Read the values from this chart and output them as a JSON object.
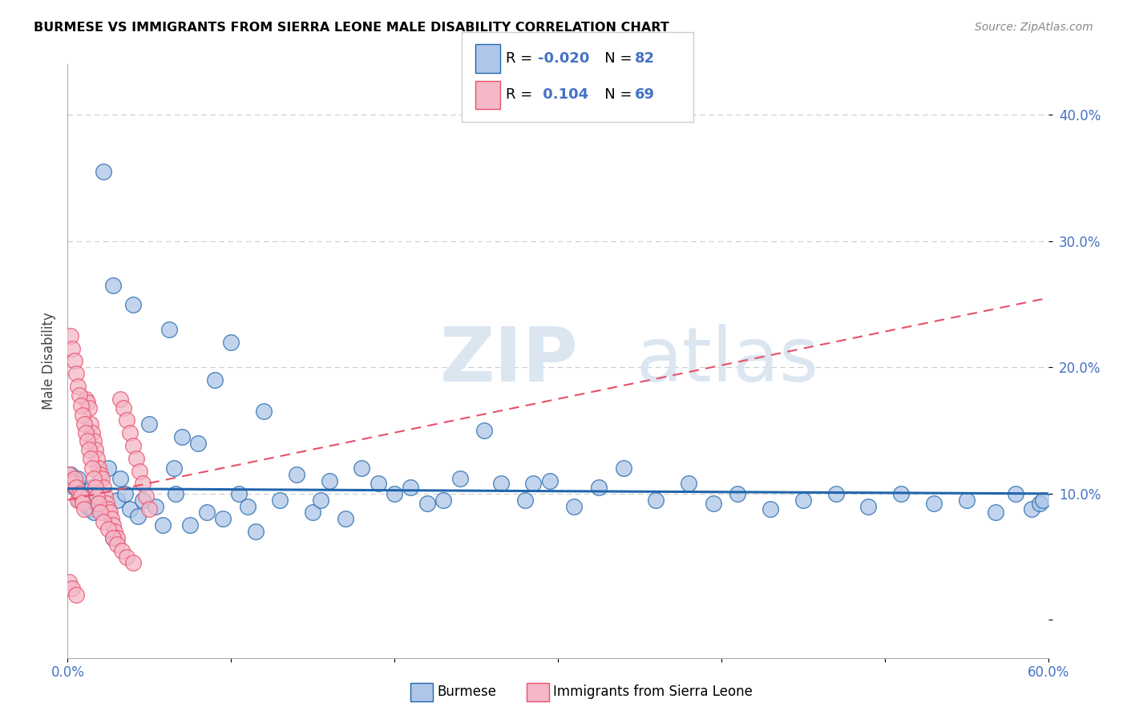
{
  "title": "BURMESE VS IMMIGRANTS FROM SIERRA LEONE MALE DISABILITY CORRELATION CHART",
  "source": "Source: ZipAtlas.com",
  "ylabel": "Male Disability",
  "xlim": [
    0,
    0.6
  ],
  "ylim": [
    -0.03,
    0.44
  ],
  "color_blue": "#aec6e8",
  "color_pink": "#f4b8c8",
  "color_blue_line": "#2166ac",
  "color_pink_line": "#e8506a",
  "burmese_x": [
    0.002,
    0.003,
    0.004,
    0.005,
    0.006,
    0.007,
    0.008,
    0.009,
    0.01,
    0.011,
    0.012,
    0.013,
    0.014,
    0.015,
    0.016,
    0.018,
    0.02,
    0.022,
    0.025,
    0.028,
    0.03,
    0.032,
    0.035,
    0.038,
    0.04,
    0.043,
    0.046,
    0.05,
    0.054,
    0.058,
    0.062,
    0.066,
    0.07,
    0.075,
    0.08,
    0.085,
    0.09,
    0.095,
    0.1,
    0.105,
    0.11,
    0.115,
    0.12,
    0.13,
    0.14,
    0.15,
    0.16,
    0.17,
    0.18,
    0.19,
    0.2,
    0.21,
    0.22,
    0.23,
    0.24,
    0.255,
    0.265,
    0.28,
    0.295,
    0.31,
    0.325,
    0.34,
    0.36,
    0.38,
    0.395,
    0.41,
    0.43,
    0.45,
    0.47,
    0.49,
    0.51,
    0.53,
    0.55,
    0.568,
    0.58,
    0.59,
    0.595,
    0.597,
    0.285,
    0.155,
    0.065,
    0.028
  ],
  "burmese_y": [
    0.115,
    0.11,
    0.105,
    0.108,
    0.112,
    0.095,
    0.1,
    0.098,
    0.102,
    0.096,
    0.09,
    0.093,
    0.088,
    0.105,
    0.085,
    0.092,
    0.115,
    0.355,
    0.12,
    0.265,
    0.095,
    0.112,
    0.1,
    0.088,
    0.25,
    0.082,
    0.095,
    0.155,
    0.09,
    0.075,
    0.23,
    0.1,
    0.145,
    0.075,
    0.14,
    0.085,
    0.19,
    0.08,
    0.22,
    0.1,
    0.09,
    0.07,
    0.165,
    0.095,
    0.115,
    0.085,
    0.11,
    0.08,
    0.12,
    0.108,
    0.1,
    0.105,
    0.092,
    0.095,
    0.112,
    0.15,
    0.108,
    0.095,
    0.11,
    0.09,
    0.105,
    0.12,
    0.095,
    0.108,
    0.092,
    0.1,
    0.088,
    0.095,
    0.1,
    0.09,
    0.1,
    0.092,
    0.095,
    0.085,
    0.1,
    0.088,
    0.092,
    0.095,
    0.108,
    0.095,
    0.12,
    0.065
  ],
  "sierra_x": [
    0.001,
    0.002,
    0.003,
    0.004,
    0.005,
    0.006,
    0.007,
    0.008,
    0.009,
    0.01,
    0.011,
    0.012,
    0.013,
    0.014,
    0.015,
    0.016,
    0.017,
    0.018,
    0.019,
    0.02,
    0.021,
    0.022,
    0.023,
    0.024,
    0.025,
    0.026,
    0.027,
    0.028,
    0.029,
    0.03,
    0.032,
    0.034,
    0.036,
    0.038,
    0.04,
    0.042,
    0.044,
    0.046,
    0.048,
    0.05,
    0.002,
    0.003,
    0.004,
    0.005,
    0.006,
    0.007,
    0.008,
    0.009,
    0.01,
    0.011,
    0.012,
    0.013,
    0.014,
    0.015,
    0.016,
    0.017,
    0.018,
    0.019,
    0.02,
    0.022,
    0.025,
    0.028,
    0.03,
    0.033,
    0.036,
    0.04,
    0.001,
    0.003,
    0.005
  ],
  "sierra_y": [
    0.115,
    0.11,
    0.108,
    0.112,
    0.105,
    0.095,
    0.1,
    0.098,
    0.093,
    0.088,
    0.175,
    0.172,
    0.168,
    0.155,
    0.148,
    0.142,
    0.135,
    0.128,
    0.12,
    0.115,
    0.112,
    0.105,
    0.098,
    0.092,
    0.088,
    0.085,
    0.08,
    0.075,
    0.07,
    0.065,
    0.175,
    0.168,
    0.158,
    0.148,
    0.138,
    0.128,
    0.118,
    0.108,
    0.098,
    0.088,
    0.225,
    0.215,
    0.205,
    0.195,
    0.185,
    0.178,
    0.17,
    0.162,
    0.155,
    0.148,
    0.142,
    0.135,
    0.128,
    0.12,
    0.112,
    0.105,
    0.098,
    0.092,
    0.085,
    0.078,
    0.072,
    0.065,
    0.06,
    0.055,
    0.05,
    0.045,
    0.03,
    0.025,
    0.02
  ],
  "blue_line_x": [
    0.0,
    0.6
  ],
  "blue_line_y": [
    0.104,
    0.1
  ],
  "pink_line_x": [
    0.0,
    0.6
  ],
  "pink_line_y": [
    0.095,
    0.255
  ]
}
